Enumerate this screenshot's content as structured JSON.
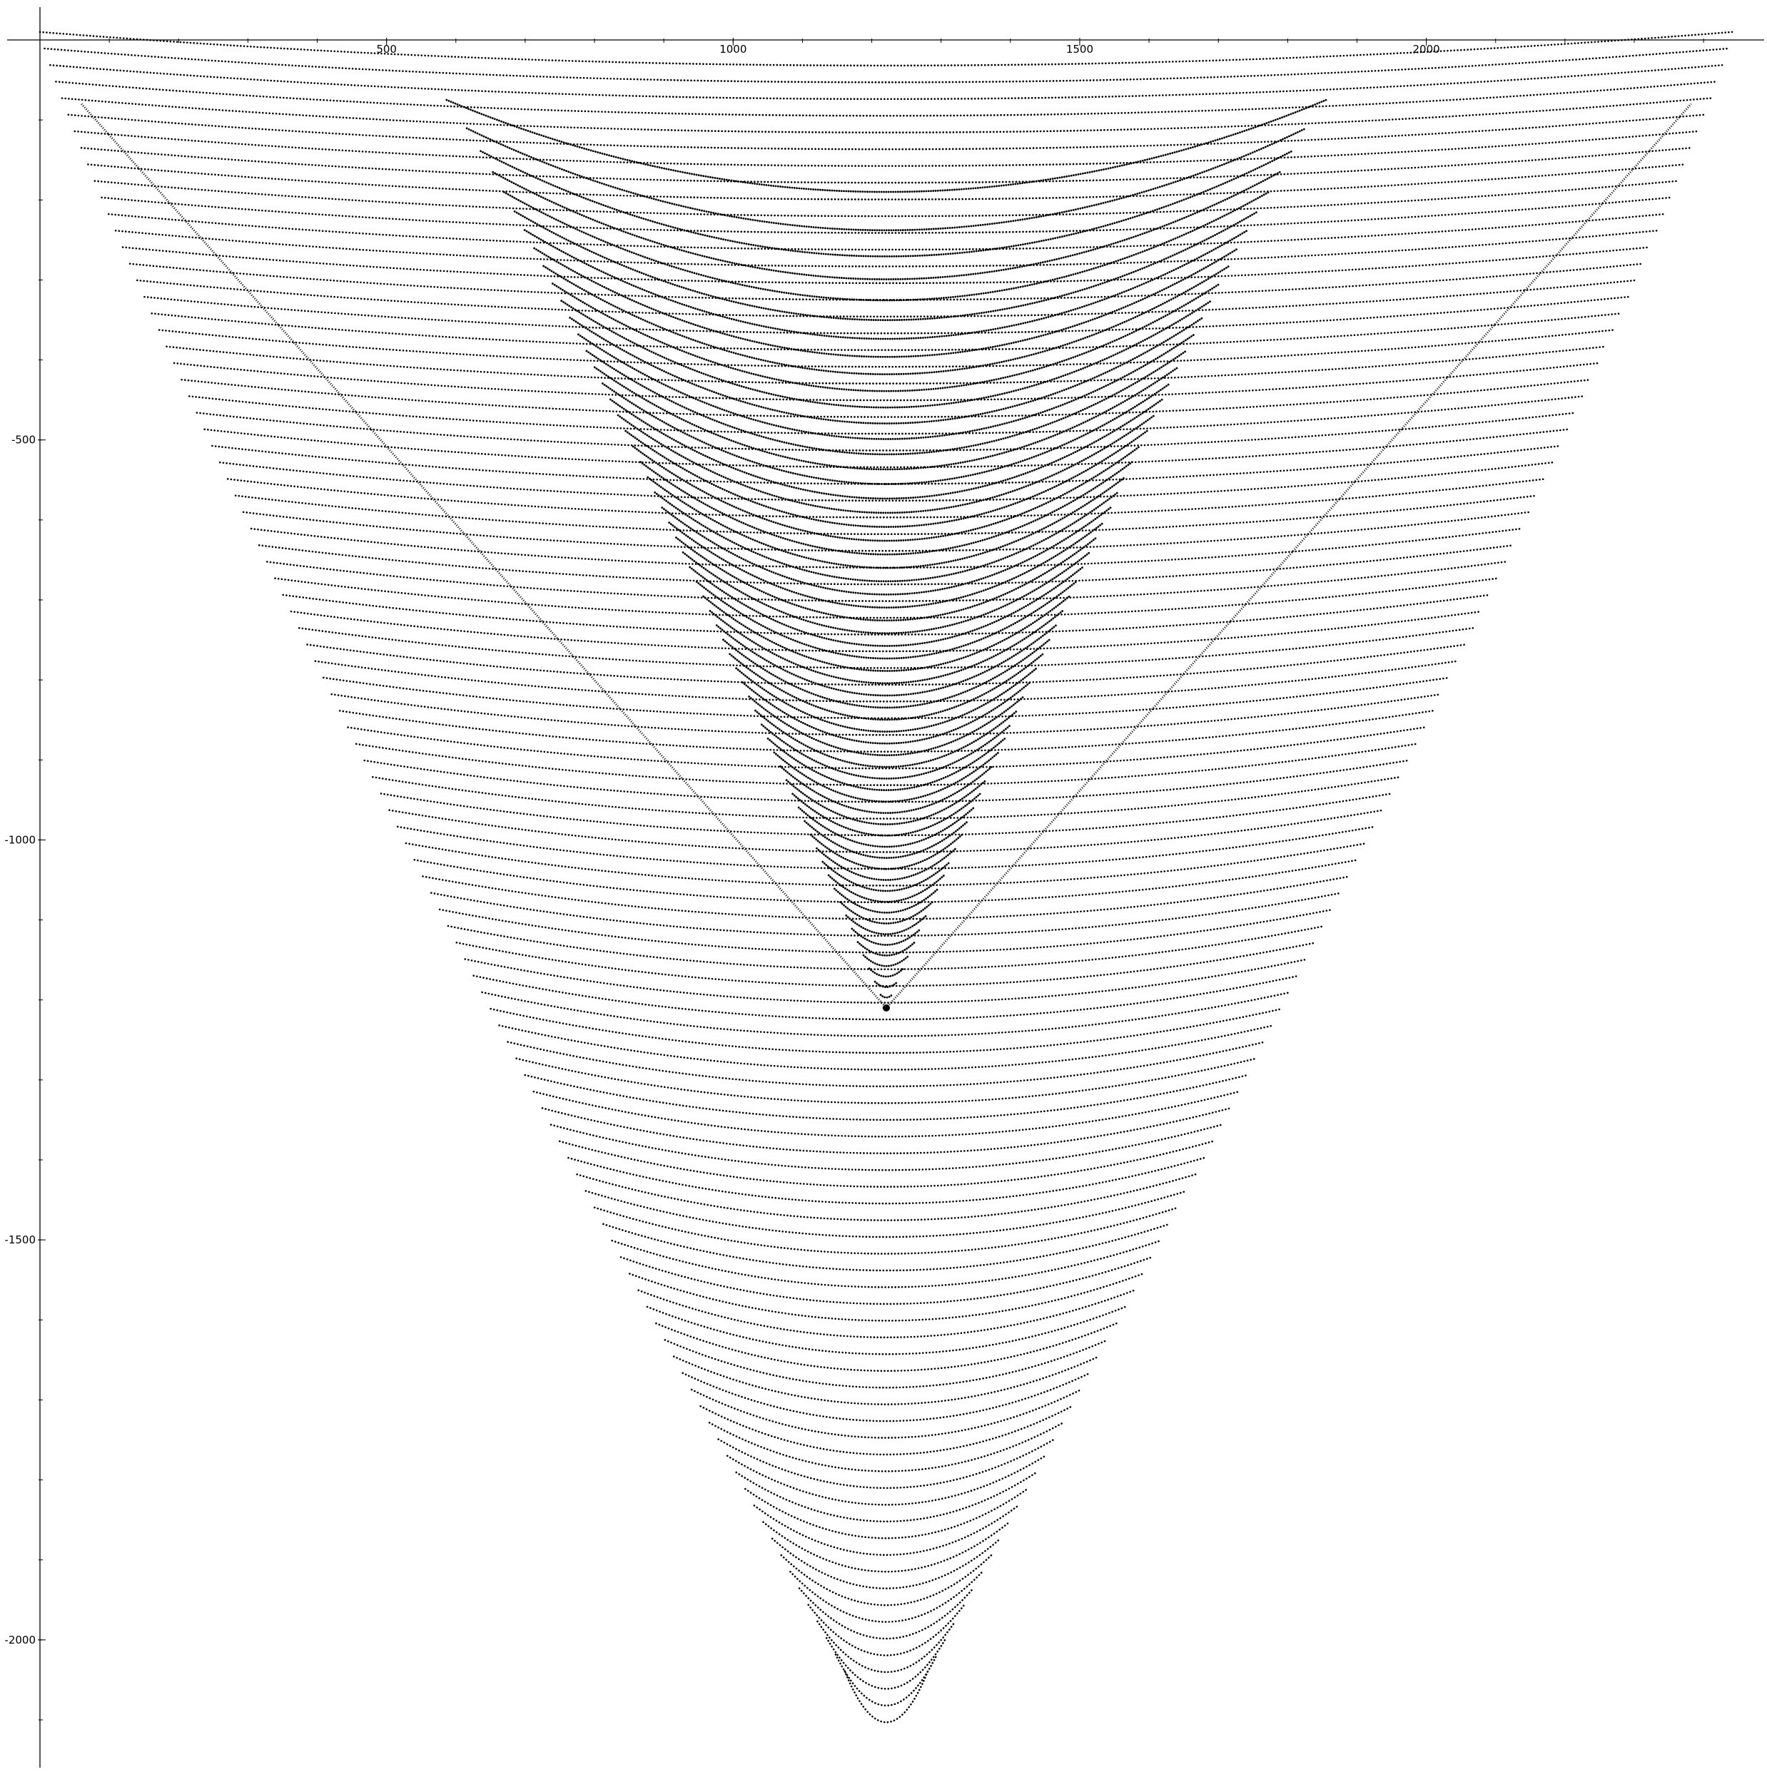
{
  "chart_data": {
    "type": "scatter",
    "title": "",
    "xlabel": "",
    "ylabel": "",
    "xlim": [
      0,
      2442
    ],
    "ylim": [
      -2135,
      0
    ],
    "grid": false,
    "legend": "none",
    "x_ticks": [
      {
        "value": 500,
        "label": "500"
      },
      {
        "value": 1000,
        "label": "1000"
      },
      {
        "value": 1500,
        "label": "1500"
      },
      {
        "value": 2000,
        "label": "2000"
      }
    ],
    "y_ticks": [
      {
        "value": -500,
        "label": "-500"
      },
      {
        "value": -1000,
        "label": "-1000"
      },
      {
        "value": -1500,
        "label": "-1500"
      },
      {
        "value": -2000,
        "label": "-2000"
      }
    ],
    "point_color": "#000000",
    "outer_family": {
      "description_values_only": true,
      "count": 100,
      "vertex_x": 1221,
      "first_vertex_y": -32,
      "last_vertex_y": -2103,
      "first_halfwidth": 1221,
      "last_halfwidth": 60
    },
    "inner_family": {
      "count": 60,
      "vertex_x": 1221,
      "first_vertex_y": -190,
      "last_vertex_y": -1210,
      "first_endpoint_depth": -75,
      "last_endpoint_depth": -1210,
      "slope": 1.66
    },
    "apex": {
      "x": 1221,
      "y": -1210
    }
  }
}
